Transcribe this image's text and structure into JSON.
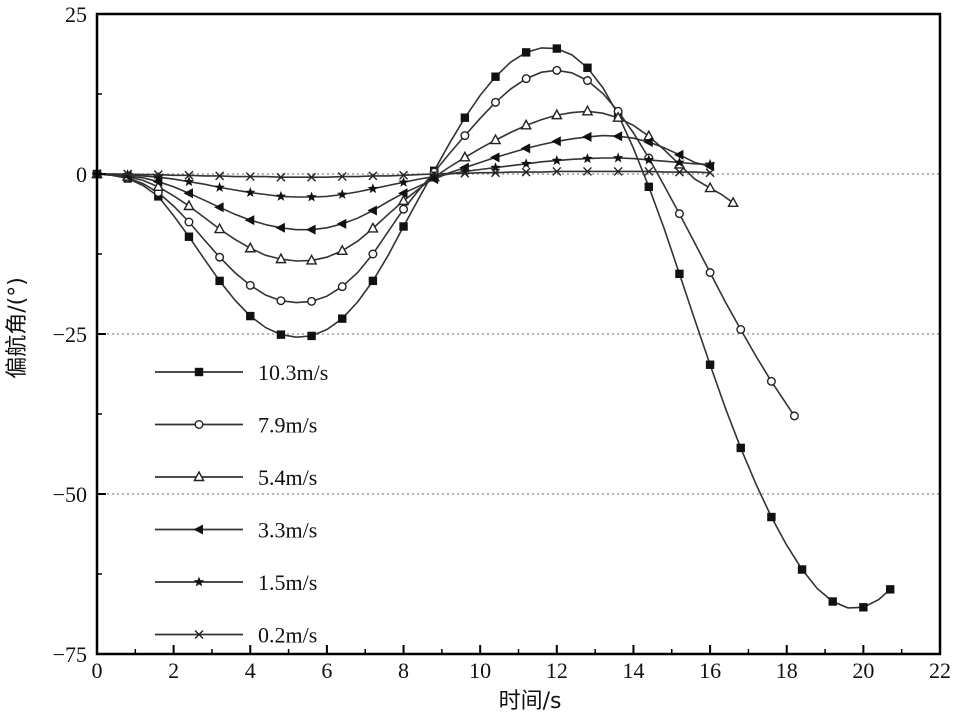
{
  "chart_data": {
    "type": "line",
    "title": "",
    "xlabel": "时间/s",
    "ylabel": "偏航角/(°)",
    "xlim": [
      0,
      22
    ],
    "ylim": [
      -75,
      25
    ],
    "xticks": [
      0,
      2,
      4,
      6,
      8,
      10,
      12,
      14,
      16,
      18,
      20,
      22
    ],
    "yticks": [
      25,
      0,
      -25,
      -50,
      -75
    ],
    "x_tick_labels": [
      "0",
      "2",
      "4",
      "6",
      "8",
      "10",
      "12",
      "14",
      "16",
      "18",
      "20",
      "22"
    ],
    "y_tick_labels": [
      "25",
      "0",
      "−25",
      "−50",
      "−75"
    ],
    "reference_lines": [
      0,
      -25,
      -50
    ],
    "grid": false,
    "legend_position": "left",
    "series": [
      {
        "name": "10.3m/s",
        "marker": "square-filled",
        "x": [
          0,
          0.4,
          0.8,
          1.2,
          1.6,
          2.0,
          2.4,
          2.8,
          3.2,
          3.6,
          4.0,
          4.4,
          4.8,
          5.2,
          5.6,
          6.0,
          6.4,
          6.8,
          7.2,
          7.6,
          8.0,
          8.4,
          8.8,
          9.2,
          9.6,
          10.0,
          10.4,
          10.8,
          11.2,
          11.6,
          12.0,
          12.4,
          12.8,
          13.2,
          13.6,
          14.0,
          14.4,
          14.8,
          15.2,
          15.6,
          16.0,
          16.4,
          16.8,
          17.2,
          17.6,
          18.0,
          18.4,
          18.8,
          19.2,
          19.6,
          20.0,
          20.4,
          20.7
        ],
        "y": [
          0,
          -0.2,
          -0.7,
          -1.8,
          -3.5,
          -6.5,
          -9.8,
          -13.3,
          -16.7,
          -19.7,
          -22.2,
          -24.0,
          -25.1,
          -25.5,
          -25.3,
          -24.3,
          -22.6,
          -20.0,
          -16.7,
          -12.7,
          -8.2,
          -3.8,
          0.5,
          4.8,
          8.8,
          12.3,
          15.2,
          17.5,
          19.0,
          19.7,
          19.6,
          18.6,
          16.6,
          13.5,
          9.3,
          4.0,
          -2.0,
          -8.5,
          -15.6,
          -22.8,
          -29.8,
          -36.6,
          -42.8,
          -48.5,
          -53.6,
          -58.0,
          -61.8,
          -64.8,
          -66.8,
          -67.8,
          -67.7,
          -66.5,
          -64.9
        ]
      },
      {
        "name": "7.9m/s",
        "marker": "circle-open",
        "x": [
          0,
          0.4,
          0.8,
          1.2,
          1.6,
          2.0,
          2.4,
          2.8,
          3.2,
          3.6,
          4.0,
          4.4,
          4.8,
          5.2,
          5.6,
          6.0,
          6.4,
          6.8,
          7.2,
          7.6,
          8.0,
          8.4,
          8.8,
          9.2,
          9.6,
          10.0,
          10.4,
          10.8,
          11.2,
          11.6,
          12.0,
          12.4,
          12.8,
          13.2,
          13.6,
          14.0,
          14.4,
          14.8,
          15.2,
          15.6,
          16.0,
          16.4,
          16.8,
          17.2,
          17.6,
          18.0,
          18.2
        ],
        "y": [
          0,
          -0.2,
          -0.6,
          -1.5,
          -2.9,
          -5.0,
          -7.5,
          -10.3,
          -13.0,
          -15.4,
          -17.4,
          -18.9,
          -19.8,
          -20.1,
          -19.9,
          -19.1,
          -17.6,
          -15.4,
          -12.5,
          -9.0,
          -5.5,
          -2.5,
          0.3,
          3.2,
          6.0,
          8.7,
          11.2,
          13.3,
          14.9,
          15.9,
          16.2,
          15.8,
          14.6,
          12.6,
          9.8,
          6.4,
          2.5,
          -1.8,
          -6.2,
          -10.8,
          -15.4,
          -20.0,
          -24.3,
          -28.5,
          -32.4,
          -36.0,
          -37.8
        ]
      },
      {
        "name": "5.4m/s",
        "marker": "triangle-open",
        "x": [
          0,
          0.4,
          0.8,
          1.2,
          1.6,
          2.0,
          2.4,
          2.8,
          3.2,
          3.6,
          4.0,
          4.4,
          4.8,
          5.2,
          5.6,
          6.0,
          6.4,
          6.8,
          7.2,
          7.6,
          8.0,
          8.4,
          8.8,
          9.2,
          9.6,
          10.0,
          10.4,
          10.8,
          11.2,
          11.6,
          12.0,
          12.4,
          12.8,
          13.2,
          13.6,
          14.0,
          14.4,
          14.8,
          15.2,
          15.6,
          16.0,
          16.3,
          16.6
        ],
        "y": [
          0,
          -0.1,
          -0.4,
          -1.0,
          -2.0,
          -3.4,
          -5.0,
          -6.8,
          -8.6,
          -10.2,
          -11.6,
          -12.7,
          -13.3,
          -13.6,
          -13.5,
          -13.0,
          -12.0,
          -10.5,
          -8.5,
          -6.3,
          -4.2,
          -2.3,
          -0.5,
          1.1,
          2.6,
          4.0,
          5.3,
          6.5,
          7.6,
          8.5,
          9.2,
          9.6,
          9.8,
          9.5,
          8.8,
          7.6,
          5.9,
          3.8,
          1.5,
          -0.8,
          -2.2,
          -3.2,
          -4.5
        ]
      },
      {
        "name": "3.3m/s",
        "marker": "triangle-left-filled",
        "x": [
          0,
          0.4,
          0.8,
          1.2,
          1.6,
          2.0,
          2.4,
          2.8,
          3.2,
          3.6,
          4.0,
          4.4,
          4.8,
          5.2,
          5.6,
          6.0,
          6.4,
          6.8,
          7.2,
          7.6,
          8.0,
          8.4,
          8.8,
          9.2,
          9.6,
          10.0,
          10.4,
          10.8,
          11.2,
          11.6,
          12.0,
          12.4,
          12.8,
          13.2,
          13.6,
          14.0,
          14.4,
          14.8,
          15.2,
          15.6,
          16.0
        ],
        "y": [
          0,
          -0.1,
          -0.3,
          -0.6,
          -1.2,
          -2.0,
          -3.0,
          -4.1,
          -5.2,
          -6.3,
          -7.2,
          -7.9,
          -8.4,
          -8.7,
          -8.7,
          -8.4,
          -7.8,
          -6.9,
          -5.7,
          -4.3,
          -3.0,
          -1.9,
          -0.8,
          0.2,
          1.0,
          1.8,
          2.6,
          3.3,
          4.0,
          4.6,
          5.1,
          5.5,
          5.8,
          6.0,
          5.9,
          5.6,
          5.0,
          4.1,
          3.0,
          1.8,
          1.2
        ]
      },
      {
        "name": "1.5m/s",
        "marker": "star-filled",
        "x": [
          0,
          0.4,
          0.8,
          1.2,
          1.6,
          2.0,
          2.4,
          2.8,
          3.2,
          3.6,
          4.0,
          4.4,
          4.8,
          5.2,
          5.6,
          6.0,
          6.4,
          6.8,
          7.2,
          7.6,
          8.0,
          8.4,
          8.8,
          9.2,
          9.6,
          10.0,
          10.4,
          10.8,
          11.2,
          11.6,
          12.0,
          12.4,
          12.8,
          13.2,
          13.6,
          14.0,
          14.4,
          14.8,
          15.2,
          15.6,
          16.0
        ],
        "y": [
          0,
          0,
          -0.1,
          -0.3,
          -0.5,
          -0.8,
          -1.2,
          -1.6,
          -2.1,
          -2.5,
          -2.9,
          -3.2,
          -3.5,
          -3.6,
          -3.6,
          -3.5,
          -3.2,
          -2.8,
          -2.3,
          -1.8,
          -1.3,
          -0.8,
          -0.4,
          0,
          0.4,
          0.7,
          1.0,
          1.3,
          1.6,
          1.9,
          2.1,
          2.3,
          2.4,
          2.5,
          2.5,
          2.4,
          2.2,
          2.0,
          1.8,
          1.6,
          1.5
        ]
      },
      {
        "name": "0.2m/s",
        "marker": "x",
        "x": [
          0,
          0.4,
          0.8,
          1.2,
          1.6,
          2.0,
          2.4,
          2.8,
          3.2,
          3.6,
          4.0,
          4.4,
          4.8,
          5.2,
          5.6,
          6.0,
          6.4,
          6.8,
          7.2,
          7.6,
          8.0,
          8.4,
          8.8,
          9.2,
          9.6,
          10.0,
          10.4,
          10.8,
          11.2,
          11.6,
          12.0,
          12.4,
          12.8,
          13.2,
          13.6,
          14.0,
          14.4,
          14.8,
          15.2,
          15.6,
          16.0
        ],
        "y": [
          0,
          0,
          0,
          -0.1,
          -0.1,
          -0.2,
          -0.2,
          -0.3,
          -0.3,
          -0.4,
          -0.4,
          -0.4,
          -0.5,
          -0.5,
          -0.5,
          -0.5,
          -0.4,
          -0.4,
          -0.3,
          -0.3,
          -0.2,
          -0.1,
          0,
          0.1,
          0.1,
          0.2,
          0.2,
          0.3,
          0.3,
          0.3,
          0.4,
          0.4,
          0.4,
          0.4,
          0.4,
          0.4,
          0.4,
          0.3,
          0.3,
          0.3,
          0.2
        ]
      }
    ]
  }
}
